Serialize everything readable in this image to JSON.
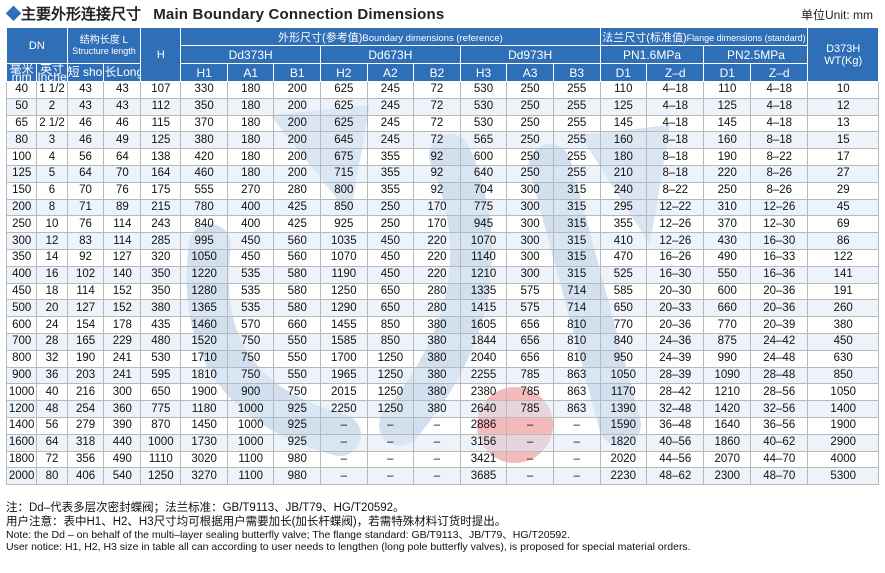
{
  "title": {
    "bullet": "◆",
    "cn": "主要外形连接尺寸",
    "en": "Main Boundary Connection Dimensions",
    "unit": "单位Unit: mm"
  },
  "header": {
    "dn": "DN",
    "dn_mm": "毫米 mm",
    "dn_inch": "英寸 Inches",
    "length_cn": "结构长度 L",
    "length_en": "Structure length",
    "short": "短 short",
    "long": "长Long",
    "h": "H",
    "boundary_cn": "外形尺寸(参考值)",
    "boundary_en": "Boundary dimensions (reference)",
    "flange_cn": "法兰尺寸(标准值)",
    "flange_en": "Flange dimensions (standard)",
    "dd373": "Dd373H",
    "dd673": "Dd673H",
    "dd973": "Dd973H",
    "pn16": "PN1.6MPa",
    "pn25": "PN2.5MPa",
    "wt_line1": "D373H",
    "wt_line2": "WT(Kg)",
    "h1": "H1",
    "a1": "A1",
    "b1": "B1",
    "h2": "H2",
    "a2": "A2",
    "b2": "B2",
    "h3": "H3",
    "a3": "A3",
    "b3": "B3",
    "d1a": "D1",
    "zd1": "Z–d",
    "d1b": "D1",
    "zd2": "Z–d"
  },
  "rows": [
    [
      "40",
      "1 1/2",
      "43",
      "43",
      "107",
      "330",
      "180",
      "200",
      "625",
      "245",
      "72",
      "530",
      "250",
      "255",
      "110",
      "4–18",
      "110",
      "4–18",
      "10"
    ],
    [
      "50",
      "2",
      "43",
      "43",
      "112",
      "350",
      "180",
      "200",
      "625",
      "245",
      "72",
      "530",
      "250",
      "255",
      "125",
      "4–18",
      "125",
      "4–18",
      "12"
    ],
    [
      "65",
      "2 1/2",
      "46",
      "46",
      "115",
      "370",
      "180",
      "200",
      "625",
      "245",
      "72",
      "530",
      "250",
      "255",
      "145",
      "4–18",
      "145",
      "4–18",
      "13"
    ],
    [
      "80",
      "3",
      "46",
      "49",
      "125",
      "380",
      "180",
      "200",
      "645",
      "245",
      "72",
      "565",
      "250",
      "255",
      "160",
      "8–18",
      "160",
      "8–18",
      "15"
    ],
    [
      "100",
      "4",
      "56",
      "64",
      "138",
      "420",
      "180",
      "200",
      "675",
      "355",
      "92",
      "600",
      "250",
      "255",
      "180",
      "8–18",
      "190",
      "8–22",
      "17"
    ],
    [
      "125",
      "5",
      "64",
      "70",
      "164",
      "460",
      "180",
      "200",
      "715",
      "355",
      "92",
      "640",
      "250",
      "255",
      "210",
      "8–18",
      "220",
      "8–26",
      "27"
    ],
    [
      "150",
      "6",
      "70",
      "76",
      "175",
      "555",
      "270",
      "280",
      "800",
      "355",
      "92",
      "704",
      "300",
      "315",
      "240",
      "8–22",
      "250",
      "8–26",
      "29"
    ],
    [
      "200",
      "8",
      "71",
      "89",
      "215",
      "780",
      "400",
      "425",
      "850",
      "250",
      "170",
      "775",
      "300",
      "315",
      "295",
      "12–22",
      "310",
      "12–26",
      "45"
    ],
    [
      "250",
      "10",
      "76",
      "114",
      "243",
      "840",
      "400",
      "425",
      "925",
      "250",
      "170",
      "945",
      "300",
      "315",
      "355",
      "12–26",
      "370",
      "12–30",
      "69"
    ],
    [
      "300",
      "12",
      "83",
      "114",
      "285",
      "995",
      "450",
      "560",
      "1035",
      "450",
      "220",
      "1070",
      "300",
      "315",
      "410",
      "12–26",
      "430",
      "16–30",
      "86"
    ],
    [
      "350",
      "14",
      "92",
      "127",
      "320",
      "1050",
      "450",
      "560",
      "1070",
      "450",
      "220",
      "1140",
      "300",
      "315",
      "470",
      "16–26",
      "490",
      "16–33",
      "122"
    ],
    [
      "400",
      "16",
      "102",
      "140",
      "350",
      "1220",
      "535",
      "580",
      "1190",
      "450",
      "220",
      "1210",
      "300",
      "315",
      "525",
      "16–30",
      "550",
      "16–36",
      "141"
    ],
    [
      "450",
      "18",
      "114",
      "152",
      "350",
      "1280",
      "535",
      "580",
      "1250",
      "650",
      "280",
      "1335",
      "575",
      "714",
      "585",
      "20–30",
      "600",
      "20–36",
      "191"
    ],
    [
      "500",
      "20",
      "127",
      "152",
      "380",
      "1365",
      "535",
      "580",
      "1290",
      "650",
      "280",
      "1415",
      "575",
      "714",
      "650",
      "20–33",
      "660",
      "20–36",
      "260"
    ],
    [
      "600",
      "24",
      "154",
      "178",
      "435",
      "1460",
      "570",
      "660",
      "1455",
      "850",
      "380",
      "1605",
      "656",
      "810",
      "770",
      "20–36",
      "770",
      "20–39",
      "380"
    ],
    [
      "700",
      "28",
      "165",
      "229",
      "480",
      "1520",
      "750",
      "550",
      "1585",
      "850",
      "380",
      "1844",
      "656",
      "810",
      "840",
      "24–36",
      "875",
      "24–42",
      "450"
    ],
    [
      "800",
      "32",
      "190",
      "241",
      "530",
      "1710",
      "750",
      "550",
      "1700",
      "1250",
      "380",
      "2040",
      "656",
      "810",
      "950",
      "24–39",
      "990",
      "24–48",
      "630"
    ],
    [
      "900",
      "36",
      "203",
      "241",
      "595",
      "1810",
      "750",
      "550",
      "1965",
      "1250",
      "380",
      "2255",
      "785",
      "863",
      "1050",
      "28–39",
      "1090",
      "28–48",
      "850"
    ],
    [
      "1000",
      "40",
      "216",
      "300",
      "650",
      "1900",
      "900",
      "750",
      "2015",
      "1250",
      "380",
      "2380",
      "785",
      "863",
      "1170",
      "28–42",
      "1210",
      "28–56",
      "1050"
    ],
    [
      "1200",
      "48",
      "254",
      "360",
      "775",
      "1180",
      "1000",
      "925",
      "2250",
      "1250",
      "380",
      "2640",
      "785",
      "863",
      "1390",
      "32–48",
      "1420",
      "32–56",
      "1400"
    ],
    [
      "1400",
      "56",
      "279",
      "390",
      "870",
      "1450",
      "1000",
      "925",
      "–",
      "–",
      "–",
      "2886",
      "–",
      "–",
      "1590",
      "36–48",
      "1640",
      "36–56",
      "1900"
    ],
    [
      "1600",
      "64",
      "318",
      "440",
      "1000",
      "1730",
      "1000",
      "925",
      "–",
      "–",
      "–",
      "3156",
      "–",
      "–",
      "1820",
      "40–56",
      "1860",
      "40–62",
      "2900"
    ],
    [
      "1800",
      "72",
      "356",
      "490",
      "1110",
      "3020",
      "1100",
      "980",
      "–",
      "–",
      "–",
      "3421",
      "–",
      "–",
      "2020",
      "44–56",
      "2070",
      "44–70",
      "4000"
    ],
    [
      "2000",
      "80",
      "406",
      "540",
      "1250",
      "3270",
      "1100",
      "980",
      "–",
      "–",
      "–",
      "3685",
      "–",
      "–",
      "2230",
      "48–62",
      "2300",
      "48–70",
      "5300"
    ]
  ],
  "notes": {
    "n1": "注：Dd–代表多层次密封蝶阀；法兰标准：GB/T9113、JB/T79、HG/T20592。",
    "n2": "用户注意：表中H1、H2、H3尺寸均可根据用户需要加长(加长杆蝶阀)，若需特殊材料订货时提出。",
    "n3": "Note: the Dd – on behalf of the multi–layer sealing butterfly valve; The flange standard: GB/T9113、JB/T79、HG/T20592.",
    "n4": "User notice: H1, H2, H3 size in table all can according to user needs to lengthen (long pole butterfly valves), is proposed for special material orders."
  },
  "colors": {
    "header_bg": "#2f6fb7",
    "header_text": "#ffffff",
    "watermark": "#2f6fb7",
    "watermark_accent": "#e0393e"
  }
}
